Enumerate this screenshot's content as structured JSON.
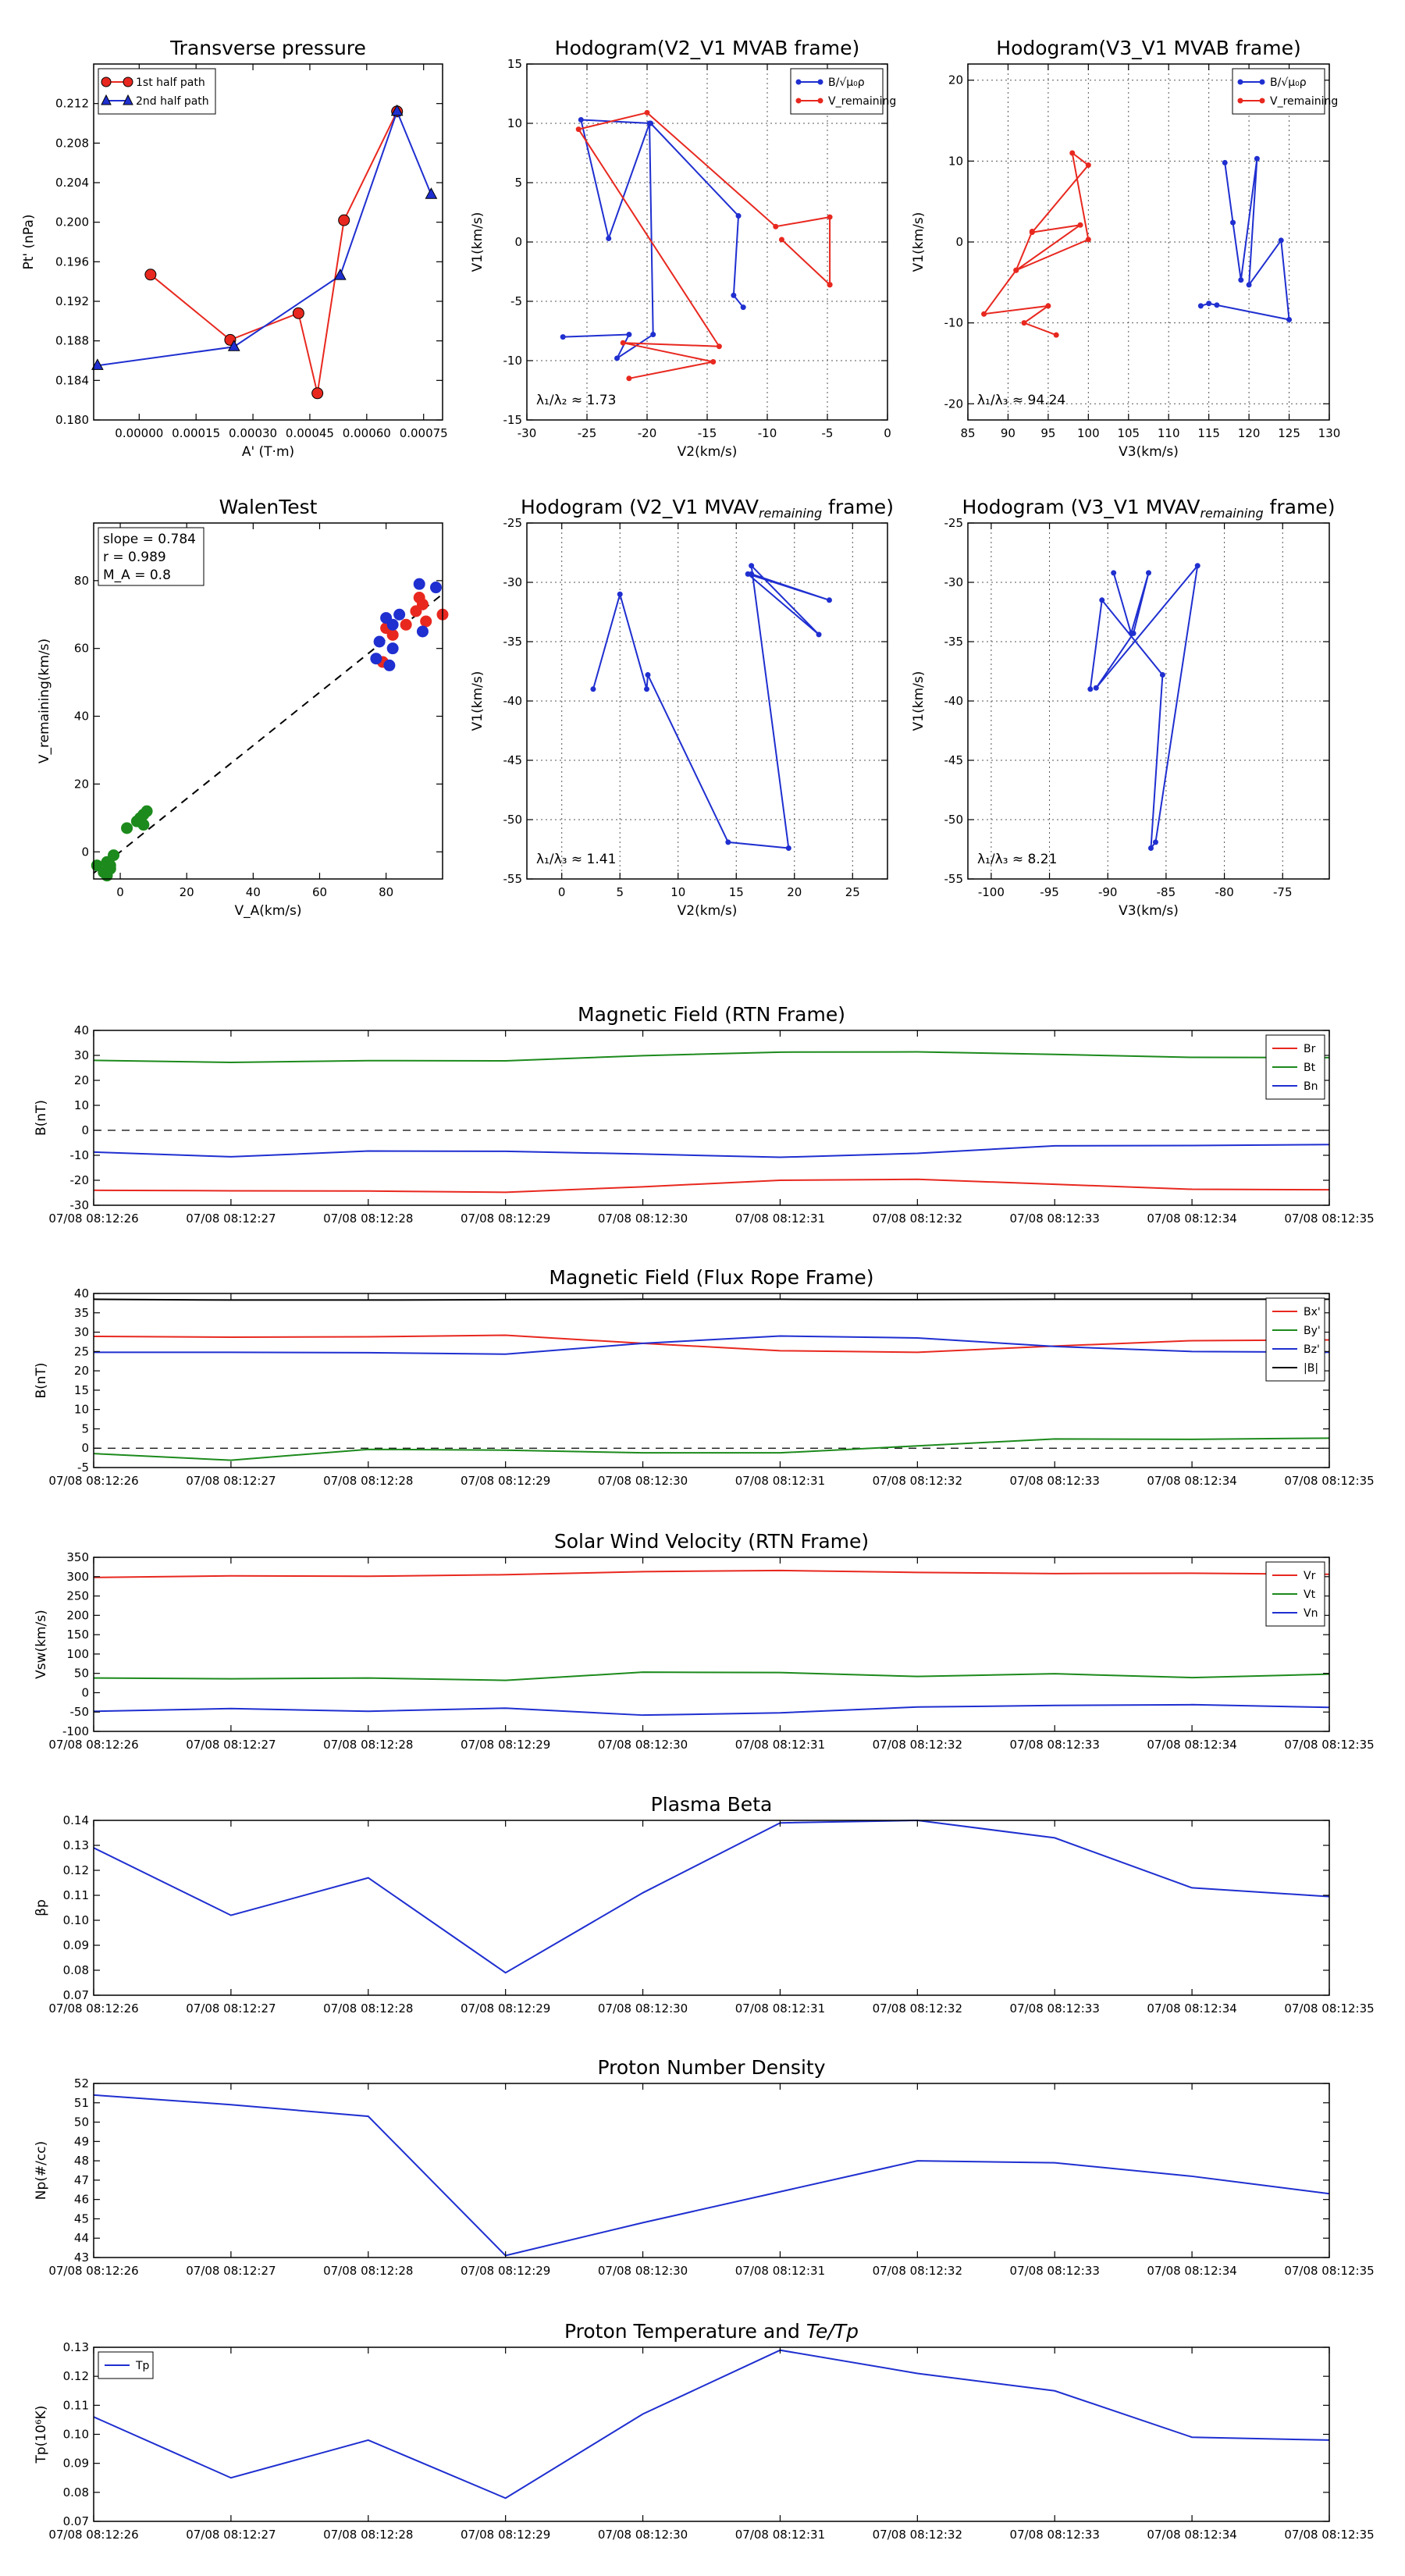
{
  "colors": {
    "red": "#e8281f",
    "green": "#1c8a1c",
    "blue": "#1f2fd0",
    "black": "#000000"
  },
  "chart_data": [
    {
      "id": "pt",
      "type": "line",
      "title": "Transverse pressure",
      "xlabel": "A' (T·m)",
      "ylabel": "Pt' (nPa)",
      "xlim": [
        -0.00012,
        0.0008
      ],
      "ylim": [
        0.18,
        0.216
      ],
      "xticks": [
        0,
        0.00015,
        0.0003,
        0.00045,
        0.0006,
        0.00075
      ],
      "xticklabels": [
        "0.00000",
        "0.00015",
        "0.00030",
        "0.00045",
        "0.00060",
        "0.00075"
      ],
      "yticks": [
        0.18,
        0.184,
        0.188,
        0.192,
        0.196,
        0.2,
        0.204,
        0.208,
        0.212
      ],
      "yticklabels": [
        "0.180",
        "0.184",
        "0.188",
        "0.192",
        "0.196",
        "0.200",
        "0.204",
        "0.208",
        "0.212"
      ],
      "grid": false,
      "legend": "top-left",
      "series": [
        {
          "name": "1st half path",
          "color": "red",
          "marker": "circle",
          "x": [
            3e-05,
            0.00024,
            0.00042,
            0.00047,
            0.00054,
            0.00068
          ],
          "y": [
            0.1947,
            0.1881,
            0.1908,
            0.1827,
            0.2002,
            0.2112
          ]
        },
        {
          "name": "2nd half path",
          "color": "blue",
          "marker": "triangle",
          "x": [
            -0.00011,
            0.00025,
            0.00053,
            0.00068,
            0.00077
          ],
          "y": [
            0.1855,
            0.1874,
            0.1946,
            0.2112,
            0.2028
          ]
        }
      ]
    },
    {
      "id": "h1",
      "type": "line",
      "title": "Hodogram(V2_V1 MVAB frame)",
      "xlabel": "V2(km/s)",
      "ylabel": "V1(km/s)",
      "xlim": [
        -30,
        0
      ],
      "ylim": [
        -15,
        15
      ],
      "xticks": [
        -30,
        -25,
        -20,
        -15,
        -10,
        -5,
        0
      ],
      "yticks": [
        -15,
        -10,
        -5,
        0,
        5,
        10,
        15
      ],
      "grid": true,
      "legend": "top-right",
      "annotation": "λ₁/λ₂ ≈ 1.73",
      "series": [
        {
          "name": "B/√μ₀ρ",
          "color": "blue",
          "marker": "dot",
          "x": [
            -27,
            -21.5,
            -22.5,
            -19.5,
            -19.8,
            -23.2,
            -25.5,
            -19.7,
            -12.4,
            -12.8,
            -12
          ],
          "y": [
            -8,
            -7.8,
            -9.8,
            -7.8,
            10,
            0.3,
            10.3,
            10,
            2.2,
            -4.5,
            -5.5
          ]
        },
        {
          "name": "V_remaining",
          "color": "red",
          "marker": "dot",
          "x": [
            -21.5,
            -14.5,
            -22,
            -14,
            -25.7,
            -20,
            -9.3,
            -4.8,
            -4.8,
            -8.8,
            -4.8,
            -4.8
          ],
          "y": [
            -11.5,
            -10.1,
            -8.5,
            -8.8,
            9.5,
            10.9,
            1.3,
            2.1,
            -3.6,
            0.2,
            -3.6,
            -3.6
          ]
        }
      ]
    },
    {
      "id": "h2",
      "type": "line",
      "title": "Hodogram(V3_V1 MVAB frame)",
      "xlabel": "V3(km/s)",
      "ylabel": "V1(km/s)",
      "xlim": [
        85,
        130
      ],
      "ylim": [
        -22,
        22
      ],
      "xticks": [
        85,
        90,
        95,
        100,
        105,
        110,
        115,
        120,
        125,
        130
      ],
      "yticks": [
        -20,
        -10,
        0,
        10,
        20
      ],
      "grid": true,
      "legend": "top-right",
      "annotation": "λ₁/λ₃ ≈ 94.24",
      "series": [
        {
          "name": "B/√μ₀ρ",
          "color": "blue",
          "marker": "dot",
          "x": [
            114,
            115,
            116,
            125,
            124,
            120,
            121,
            119,
            118,
            117
          ],
          "y": [
            -7.9,
            -7.6,
            -7.8,
            -9.6,
            0.2,
            -5.3,
            10.3,
            -4.7,
            2.4,
            9.8
          ]
        },
        {
          "name": "V_remaining",
          "color": "red",
          "marker": "dot",
          "x": [
            96,
            92,
            95,
            87,
            91,
            99,
            93,
            100,
            98,
            100,
            91,
            93
          ],
          "y": [
            -11.5,
            -10,
            -7.9,
            -8.9,
            -3.5,
            2.1,
            1.2,
            9.5,
            11,
            0.3,
            -3.5,
            1.3
          ]
        }
      ]
    },
    {
      "id": "walen",
      "type": "scatter",
      "title": "WalenTest",
      "xlabel": "V_A(km/s)",
      "ylabel": "V_remaining(km/s)",
      "xlim": [
        -8,
        97
      ],
      "ylim": [
        -8,
        97
      ],
      "xticks": [
        0,
        20,
        40,
        60,
        80
      ],
      "yticks": [
        0,
        20,
        40,
        60,
        80
      ],
      "grid": false,
      "stats": {
        "slope": "slope = 0.784",
        "r": "r = 0.989",
        "ma": "M_A = 0.8"
      },
      "fit_line": {
        "slope": 0.784,
        "x": [
          -8,
          97
        ]
      },
      "series": [
        {
          "name": "green",
          "color": "green",
          "x": [
            -7,
            -5,
            -4,
            -3,
            -2,
            -4,
            -3,
            2,
            5,
            6,
            7,
            8,
            7
          ],
          "y": [
            -4,
            -6,
            -7,
            -5,
            -1,
            -3,
            -4,
            7,
            9,
            10,
            11,
            12,
            8
          ]
        },
        {
          "name": "red",
          "color": "red",
          "x": [
            79,
            82,
            86,
            89,
            90,
            92,
            97,
            91,
            80
          ],
          "y": [
            56,
            64,
            67,
            71,
            75,
            68,
            70,
            73,
            66
          ]
        },
        {
          "name": "blue",
          "color": "blue",
          "x": [
            77,
            78,
            80,
            81,
            82,
            84,
            90,
            91,
            95,
            82
          ],
          "y": [
            57,
            62,
            69,
            55,
            60,
            70,
            79,
            65,
            78,
            67
          ]
        }
      ]
    },
    {
      "id": "h3",
      "type": "line",
      "title": "Hodogram (V2_V1 MVAV",
      "title_sub": "remaining",
      "title_end": " frame)",
      "xlabel": "V2(km/s)",
      "ylabel": "V1(km/s)",
      "xlim": [
        -3,
        28
      ],
      "ylim": [
        -55,
        -25
      ],
      "xticks": [
        0,
        5,
        10,
        15,
        20,
        25
      ],
      "yticks": [
        -55,
        -50,
        -45,
        -40,
        -35,
        -30,
        -25
      ],
      "grid": true,
      "annotation": "λ₁/λ₃ ≈ 1.41",
      "series": [
        {
          "name": "B",
          "color": "blue",
          "marker": "dot",
          "x": [
            2.7,
            5,
            7.3,
            7.4,
            14.3,
            19.5,
            16.3,
            22.1,
            16,
            23,
            16.3
          ],
          "y": [
            -39,
            -31,
            -39,
            -37.8,
            -51.9,
            -52.4,
            -28.6,
            -34.4,
            -29.3,
            -31.5,
            -29.3
          ]
        }
      ]
    },
    {
      "id": "h4",
      "type": "line",
      "title": "Hodogram (V3_V1 MVAV",
      "title_sub": "remaining",
      "title_end": " frame)",
      "xlabel": "V3(km/s)",
      "ylabel": "V1(km/s)",
      "xlim": [
        -102,
        -71
      ],
      "ylim": [
        -55,
        -25
      ],
      "xticks": [
        -100,
        -95,
        -90,
        -85,
        -80,
        -75
      ],
      "yticks": [
        -55,
        -50,
        -45,
        -40,
        -35,
        -30,
        -25
      ],
      "grid": true,
      "annotation": "λ₁/λ₃ ≈ 8.21",
      "series": [
        {
          "name": "B",
          "color": "blue",
          "marker": "dot",
          "x": [
            -91.5,
            -90.5,
            -85.3,
            -86.3,
            -85.9,
            -82.3,
            -91,
            -87.8,
            -86.5,
            -88,
            -89.5
          ],
          "y": [
            -39,
            -31.5,
            -37.8,
            -52.4,
            -51.9,
            -28.6,
            -38.9,
            -34.3,
            -29.2,
            -34.3,
            -29.2
          ]
        }
      ]
    },
    {
      "id": "b_rtn",
      "type": "line",
      "title": "Magnetic Field (RTN Frame)",
      "ylabel": "B(nT)",
      "ylim": [
        -30,
        40
      ],
      "yticks": [
        -30,
        -20,
        -10,
        0,
        10,
        20,
        30,
        40
      ],
      "zero_line": true,
      "legend": "top-right",
      "series": [
        {
          "name": "Br",
          "color": "red",
          "values": [
            -24,
            -24.2,
            -24.3,
            -24.8,
            -22.6,
            -20,
            -19.6,
            -21.6,
            -23.6,
            -23.8
          ]
        },
        {
          "name": "Bt",
          "color": "green",
          "values": [
            28,
            27.2,
            27.9,
            27.8,
            29.9,
            31.3,
            31.4,
            30.4,
            29.2,
            29.1
          ]
        },
        {
          "name": "Bn",
          "color": "blue",
          "values": [
            -8.7,
            -10.6,
            -8.3,
            -8.4,
            -9.5,
            -10.8,
            -9.2,
            -6.2,
            -6.1,
            -5.7
          ]
        }
      ]
    },
    {
      "id": "b_fr",
      "type": "line",
      "title": "Magnetic Field (Flux Rope Frame)",
      "ylabel": "B(nT)",
      "ylim": [
        -5,
        40
      ],
      "yticks": [
        -5,
        0,
        5,
        10,
        15,
        20,
        25,
        30,
        35,
        40
      ],
      "zero_line": true,
      "legend": "top-right",
      "series": [
        {
          "name": "Bx'",
          "color": "red",
          "values": [
            28.9,
            28.7,
            28.8,
            29.2,
            27.1,
            25.2,
            24.8,
            26.4,
            27.8,
            28
          ]
        },
        {
          "name": "By'",
          "color": "green",
          "values": [
            -1.4,
            -3.1,
            -0.3,
            -0.5,
            -1.2,
            -1.2,
            0.6,
            2.4,
            2.3,
            2.6
          ]
        },
        {
          "name": "Bz'",
          "color": "blue",
          "values": [
            24.8,
            24.8,
            24.7,
            24.3,
            27.1,
            29,
            28.5,
            26.3,
            25,
            24.8
          ]
        },
        {
          "name": "|B|",
          "color": "black",
          "values": [
            38.5,
            38.3,
            38.3,
            38.4,
            38.5,
            38.5,
            38.4,
            38.5,
            38.5,
            38.5
          ]
        }
      ]
    },
    {
      "id": "vsw",
      "type": "line",
      "title": "Solar Wind Velocity (RTN Frame)",
      "ylabel": "Vsw(km/s)",
      "ylim": [
        -100,
        350
      ],
      "yticks": [
        -100,
        -50,
        0,
        50,
        100,
        150,
        200,
        250,
        300,
        350
      ],
      "legend": "top-right",
      "series": [
        {
          "name": "Vr",
          "color": "red",
          "values": [
            298,
            302,
            301,
            305,
            313,
            316,
            311,
            308,
            309,
            306
          ]
        },
        {
          "name": "Vt",
          "color": "green",
          "values": [
            38,
            36,
            38,
            32,
            53,
            52,
            42,
            49,
            39,
            48
          ]
        },
        {
          "name": "Vn",
          "color": "blue",
          "values": [
            -48,
            -41,
            -48,
            -40,
            -58,
            -52,
            -37,
            -33,
            -31,
            -38
          ]
        }
      ]
    },
    {
      "id": "beta",
      "type": "line",
      "title": "Plasma Beta",
      "ylabel": "βp",
      "ylim": [
        0.07,
        0.14
      ],
      "yticks": [
        0.07,
        0.08,
        0.09,
        0.1,
        0.11,
        0.12,
        0.13,
        0.14
      ],
      "yticklabels": [
        "0.07",
        "0.08",
        "0.09",
        "0.10",
        "0.11",
        "0.12",
        "0.13",
        "0.14"
      ],
      "series": [
        {
          "name": "beta",
          "color": "blue",
          "values": [
            0.129,
            0.102,
            0.117,
            0.079,
            0.111,
            0.139,
            0.14,
            0.133,
            0.113,
            0.1095
          ]
        }
      ]
    },
    {
      "id": "np",
      "type": "line",
      "title": "Proton Number Density",
      "ylabel": "Np(#/cc)",
      "ylim": [
        43,
        52
      ],
      "yticks": [
        43,
        44,
        45,
        46,
        47,
        48,
        49,
        50,
        51,
        52
      ],
      "series": [
        {
          "name": "Np",
          "color": "blue",
          "values": [
            51.4,
            50.9,
            50.3,
            43.1,
            44.8,
            46.4,
            48,
            47.9,
            47.2,
            46.3
          ]
        }
      ]
    },
    {
      "id": "tp",
      "type": "line",
      "title": "Proton Temperature and ",
      "title_math": "Te/Tp",
      "ylabel": "Tp(10⁶K)",
      "ylim": [
        0.07,
        0.13
      ],
      "yticks": [
        0.07,
        0.08,
        0.09,
        0.1,
        0.11,
        0.12,
        0.13
      ],
      "yticklabels": [
        "0.07",
        "0.08",
        "0.09",
        "0.10",
        "0.11",
        "0.12",
        "0.13"
      ],
      "legend": "top-left",
      "series": [
        {
          "name": "Tp",
          "color": "blue",
          "values": [
            0.106,
            0.085,
            0.098,
            0.078,
            0.107,
            0.129,
            0.121,
            0.115,
            0.099,
            0.098
          ]
        }
      ]
    }
  ],
  "time_ticks": [
    "07/08 08:12:26",
    "07/08 08:12:27",
    "07/08 08:12:28",
    "07/08 08:12:29",
    "07/08 08:12:30",
    "07/08 08:12:31",
    "07/08 08:12:32",
    "07/08 08:12:33",
    "07/08 08:12:34",
    "07/08 08:12:35"
  ]
}
